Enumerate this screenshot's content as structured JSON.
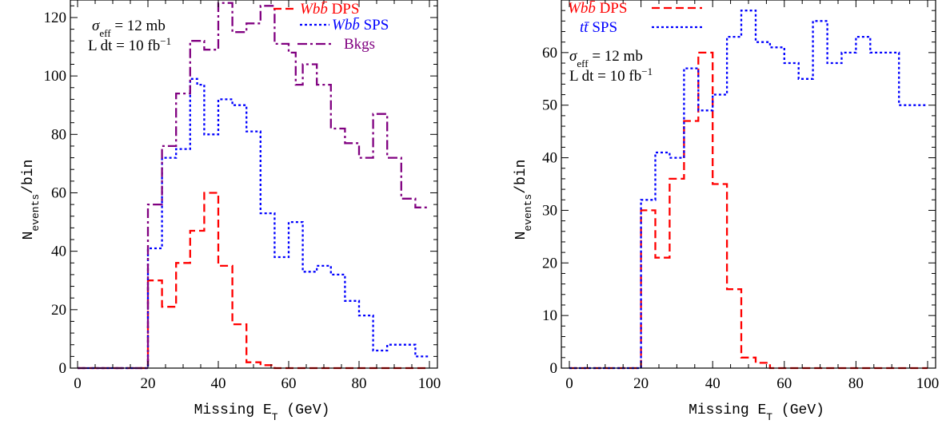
{
  "chart_data": [
    {
      "type": "line",
      "step": true,
      "xlabel": "Missing E_T (GeV)",
      "ylabel": "N_events/bin",
      "xlim": [
        0,
        100
      ],
      "ylim": [
        0,
        126
      ],
      "xticks": [
        0,
        20,
        40,
        60,
        80,
        100
      ],
      "yticks": [
        0,
        20,
        40,
        60,
        80,
        100,
        120
      ],
      "grid": false,
      "legend_position": "top-right",
      "annotations": [
        "σ_eff = 12 mb",
        "L dt = 10 fb⁻¹"
      ],
      "series": [
        {
          "name": "Wbb̄ DPS",
          "color": "#ff0000",
          "dash": "dashed",
          "x": [
            0,
            20,
            24,
            28,
            32,
            36,
            40,
            44,
            48,
            52,
            56,
            60,
            64,
            68,
            72,
            76,
            80,
            84,
            88,
            92,
            96,
            100
          ],
          "y": [
            0,
            30,
            21,
            36,
            47,
            60,
            35,
            15,
            2,
            1,
            0,
            0,
            0,
            0,
            0,
            0,
            0,
            0,
            0,
            0,
            0,
            0
          ]
        },
        {
          "name": "Wbb̄ SPS",
          "color": "#0000ff",
          "dash": "dotted",
          "x": [
            0,
            20,
            22,
            24,
            28,
            32,
            34,
            36,
            40,
            44,
            48,
            52,
            56,
            60,
            62,
            64,
            68,
            72,
            76,
            80,
            84,
            88,
            92,
            96,
            100
          ],
          "y": [
            0,
            41,
            41,
            72,
            75,
            99,
            97,
            80,
            92,
            90,
            81,
            53,
            38,
            50,
            50,
            33,
            35,
            32,
            23,
            18,
            6,
            8,
            8,
            4,
            4
          ]
        },
        {
          "name": "Bkgs",
          "color": "#800080",
          "dash": "dashdot",
          "x": [
            0,
            20,
            24,
            28,
            32,
            36,
            40,
            44,
            48,
            52,
            56,
            60,
            62,
            64,
            68,
            72,
            76,
            80,
            84,
            88,
            92,
            96,
            100
          ],
          "y": [
            0,
            56,
            76,
            94,
            112,
            109,
            125,
            115,
            118,
            124,
            111,
            108,
            97,
            104,
            97,
            82,
            77,
            72,
            87,
            72,
            58,
            55,
            55
          ]
        }
      ]
    },
    {
      "type": "line",
      "step": true,
      "xlabel": "Missing E_T (GeV)",
      "ylabel": "N_events/bin",
      "xlim": [
        0,
        100
      ],
      "ylim": [
        0,
        70
      ],
      "xticks": [
        0,
        20,
        40,
        60,
        80,
        100
      ],
      "yticks": [
        0,
        10,
        20,
        30,
        40,
        50,
        60
      ],
      "grid": false,
      "legend_position": "top-left",
      "annotations": [
        "σ_eff = 12 mb",
        "L dt = 10 fb⁻¹"
      ],
      "series": [
        {
          "name": "Wbb̄ DPS",
          "color": "#ff0000",
          "dash": "dashed",
          "x": [
            0,
            20,
            24,
            28,
            32,
            36,
            40,
            44,
            48,
            52,
            56,
            60,
            64,
            68,
            72,
            76,
            80,
            84,
            88,
            92,
            96,
            100
          ],
          "y": [
            0,
            30,
            21,
            36,
            47,
            60,
            35,
            15,
            2,
            1,
            0,
            0,
            0,
            0,
            0,
            0,
            0,
            0,
            0,
            0,
            0,
            0
          ]
        },
        {
          "name": "tt̄ SPS",
          "color": "#0000ff",
          "dash": "dotted",
          "x": [
            0,
            20,
            24,
            28,
            32,
            36,
            40,
            44,
            48,
            52,
            56,
            60,
            64,
            68,
            72,
            76,
            80,
            84,
            88,
            92,
            96,
            100
          ],
          "y": [
            0,
            32,
            41,
            40,
            57,
            49,
            52,
            63,
            68,
            62,
            61,
            58,
            55,
            66,
            58,
            60,
            63,
            60,
            60,
            50,
            50,
            50
          ]
        }
      ]
    }
  ]
}
